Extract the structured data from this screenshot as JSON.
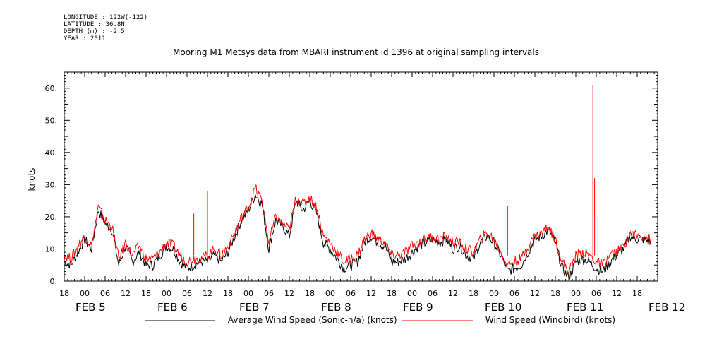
{
  "header": {
    "longitude": "LONGITUDE : 122W(-122)",
    "latitude": "LATITUDE : 36.8N",
    "depth": "DEPTH (m) : -2.5",
    "year": "YEAR : 2011"
  },
  "chart_data": {
    "type": "line",
    "title": "Mooring M1 Metsys data from MBARI instrument id 1396 at original sampling intervals",
    "ylabel": "knots",
    "xlabel": "",
    "ylim": [
      0,
      65
    ],
    "y_ticks": [
      0,
      10,
      20,
      30,
      40,
      50,
      60
    ],
    "y_tick_labels": [
      "0.",
      "10.",
      "20.",
      "30.",
      "40.",
      "50.",
      "60."
    ],
    "x_range_hours": [
      -6,
      168
    ],
    "x_hour_ticks": [
      "18",
      "00",
      "06",
      "12",
      "18",
      "00",
      "06",
      "12",
      "18",
      "00",
      "06",
      "12",
      "18",
      "00",
      "06",
      "12",
      "18",
      "00",
      "06",
      "12",
      "18",
      "00",
      "06",
      "12",
      "18",
      "00",
      "06",
      "12",
      "18"
    ],
    "day_labels": [
      "FEB  5",
      "FEB  6",
      "FEB  7",
      "FEB  8",
      "FEB  9",
      "FEB 10",
      "FEB 11",
      "FEB 12"
    ],
    "x": [
      -6,
      -4,
      -2,
      0,
      2,
      4,
      6,
      8,
      10,
      12,
      14,
      16,
      18,
      20,
      22,
      24,
      26,
      28,
      30,
      32,
      34,
      36,
      38,
      40,
      42,
      44,
      46,
      48,
      50,
      52,
      54,
      56,
      58,
      60,
      62,
      64,
      66,
      68,
      70,
      72,
      74,
      76,
      78,
      80,
      82,
      84,
      86,
      88,
      90,
      92,
      94,
      96,
      98,
      100,
      102,
      104,
      106,
      108,
      110,
      112,
      114,
      116,
      118,
      120,
      122,
      124,
      126,
      128,
      130,
      132,
      134,
      136,
      138,
      140,
      142,
      144,
      146,
      148,
      150,
      152,
      154,
      156,
      158,
      160,
      162,
      164,
      166
    ],
    "series": [
      {
        "name": "Average Wind Speed (Sonic-n/a) (knots)",
        "color": "#000000",
        "values": [
          6,
          5,
          9,
          13,
          10,
          22,
          18,
          16,
          5,
          11,
          6,
          9,
          5,
          5,
          8,
          11,
          10,
          6,
          4,
          5,
          6,
          6,
          8,
          6,
          9,
          14,
          19,
          22,
          27,
          24,
          10,
          19,
          17,
          14,
          25,
          22,
          25,
          21,
          12,
          10,
          7,
          4,
          5,
          6,
          12,
          14,
          12,
          11,
          6,
          6,
          7,
          9,
          11,
          12,
          13,
          12,
          13,
          10,
          11,
          8,
          7,
          12,
          14,
          12,
          8,
          3,
          4,
          5,
          9,
          13,
          14,
          16,
          12,
          4,
          1,
          6,
          7,
          6,
          4,
          3,
          6,
          8,
          10,
          14,
          13,
          13,
          12
        ]
      },
      {
        "name": "Wind Speed (Windbird) (knots)",
        "color": "#ff0000",
        "values": [
          8,
          7,
          11,
          14,
          11,
          23,
          19,
          17,
          7,
          12,
          8,
          11,
          7,
          7,
          9,
          12,
          11,
          8,
          6,
          7,
          7,
          8,
          10,
          8,
          11,
          15,
          20,
          23,
          29,
          25,
          12,
          20,
          18,
          16,
          26,
          24,
          26,
          23,
          14,
          12,
          9,
          6,
          7,
          8,
          13,
          15,
          13,
          12,
          8,
          8,
          9,
          11,
          12,
          13,
          14,
          13,
          14,
          12,
          12,
          10,
          9,
          13,
          15,
          13,
          9,
          5,
          6,
          7,
          11,
          14,
          15,
          17,
          13,
          6,
          3,
          8,
          9,
          8,
          6,
          5,
          8,
          9,
          11,
          15,
          14,
          14,
          13
        ]
      }
    ],
    "spikes": [
      {
        "x": 32,
        "value": 21
      },
      {
        "x": 36,
        "value": 28
      },
      {
        "x": 124,
        "value": 23.5
      },
      {
        "x": 149,
        "value": 61
      },
      {
        "x": 149.5,
        "value": 32
      },
      {
        "x": 150.5,
        "value": 20.5
      }
    ],
    "grid": false,
    "legend_position": "bottom"
  }
}
